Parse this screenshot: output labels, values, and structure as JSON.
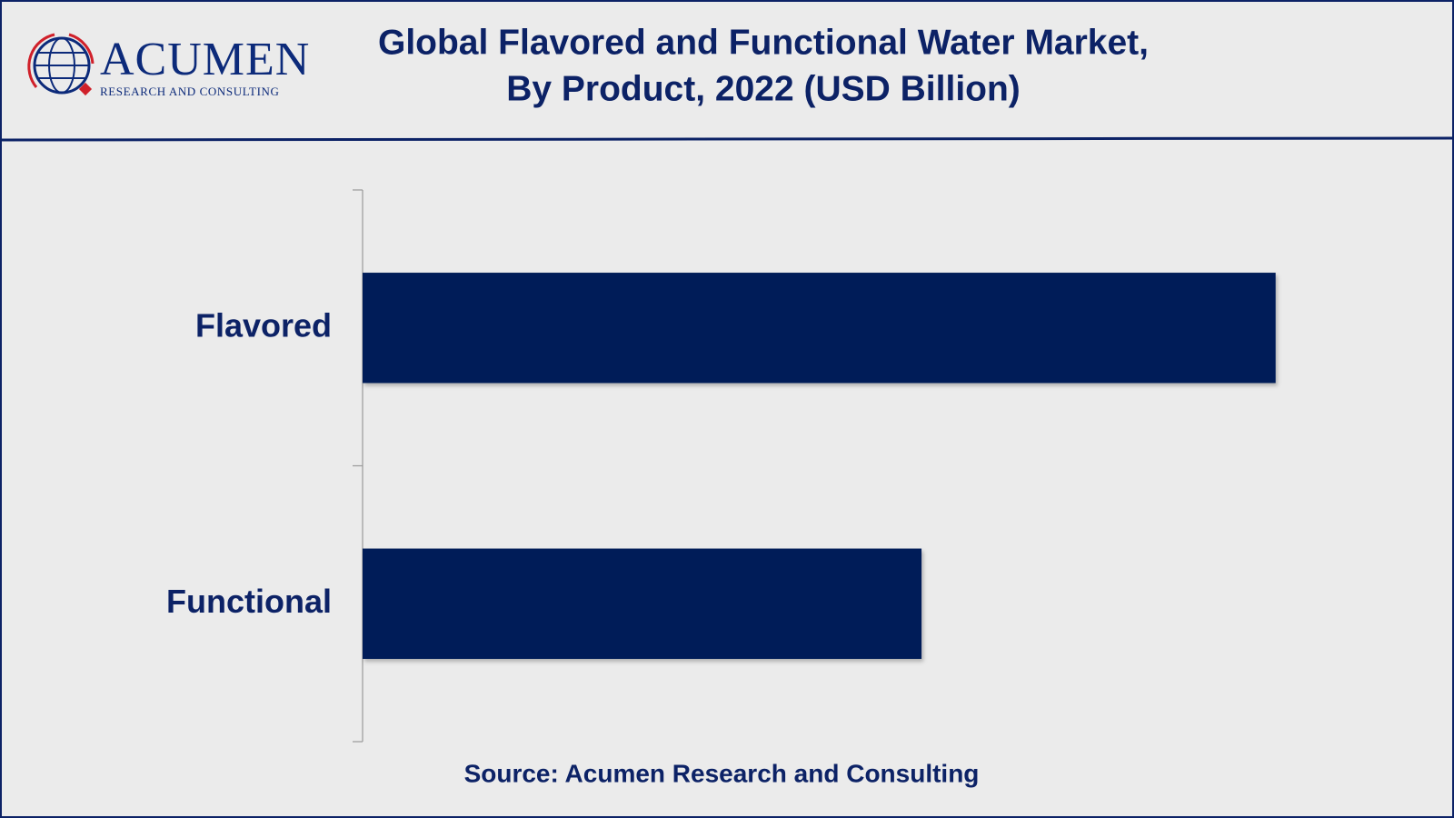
{
  "logo": {
    "name": "ACUMEN",
    "tagline": "RESEARCH AND CONSULTING"
  },
  "chart_data": {
    "type": "bar",
    "orientation": "horizontal",
    "title": "Global Flavored and Functional Water Market,",
    "subtitle": "By Product, 2022 (USD Billion)",
    "categories": [
      "Flavored",
      "Functional"
    ],
    "values": [
      9.85,
      6.03
    ],
    "color": "#001c58",
    "xlim": [
      0,
      11
    ],
    "source": "Source: Acumen Research and Consulting"
  }
}
